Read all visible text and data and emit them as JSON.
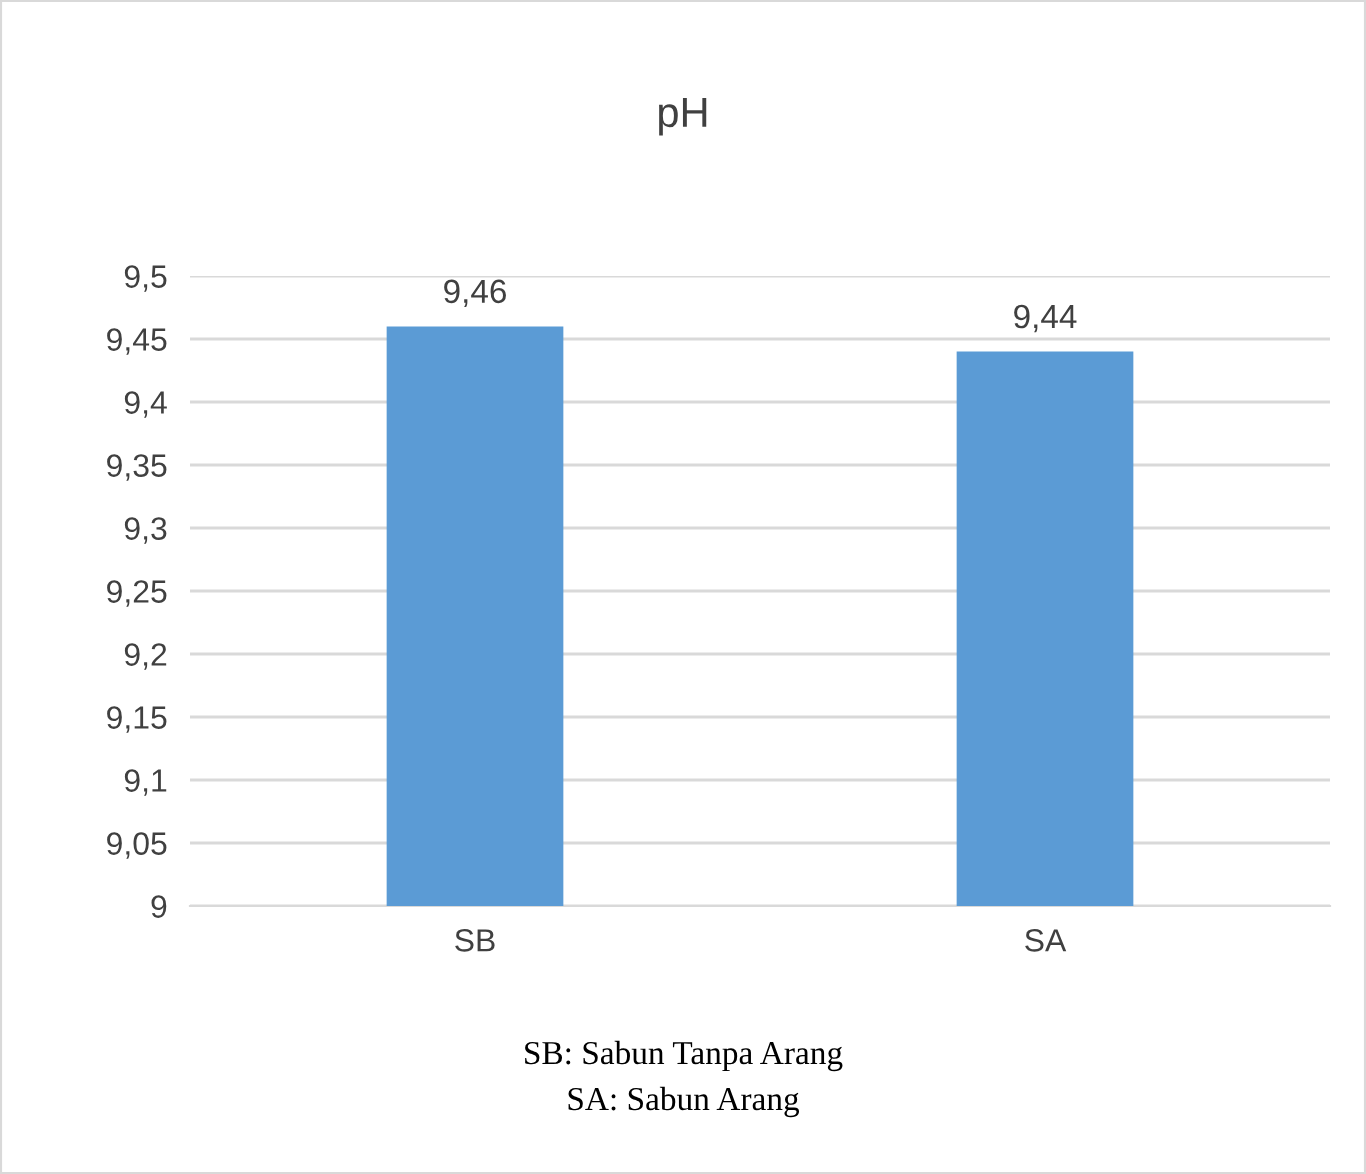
{
  "chart_data": {
    "type": "bar",
    "title": "pH",
    "categories": [
      "SB",
      "SA"
    ],
    "values": [
      9.46,
      9.44
    ],
    "color": "#5b9bd5",
    "value_labels": [
      "9,46",
      "9,44"
    ],
    "ylim": [
      9,
      9.5
    ],
    "yticks": [
      {
        "value": 9,
        "label": "9"
      },
      {
        "value": 9.05,
        "label": "9,05"
      },
      {
        "value": 9.1,
        "label": "9,1"
      },
      {
        "value": 9.15,
        "label": "9,15"
      },
      {
        "value": 9.2,
        "label": "9,2"
      },
      {
        "value": 9.25,
        "label": "9,25"
      },
      {
        "value": 9.3,
        "label": "9,3"
      },
      {
        "value": 9.35,
        "label": "9,35"
      },
      {
        "value": 9.4,
        "label": "9,4"
      },
      {
        "value": 9.45,
        "label": "9,45"
      },
      {
        "value": 9.5,
        "label": "9,5"
      }
    ],
    "grid": "y",
    "annotations": [
      "SB: Sabun Tanpa Arang",
      "SA: Sabun Arang"
    ]
  }
}
